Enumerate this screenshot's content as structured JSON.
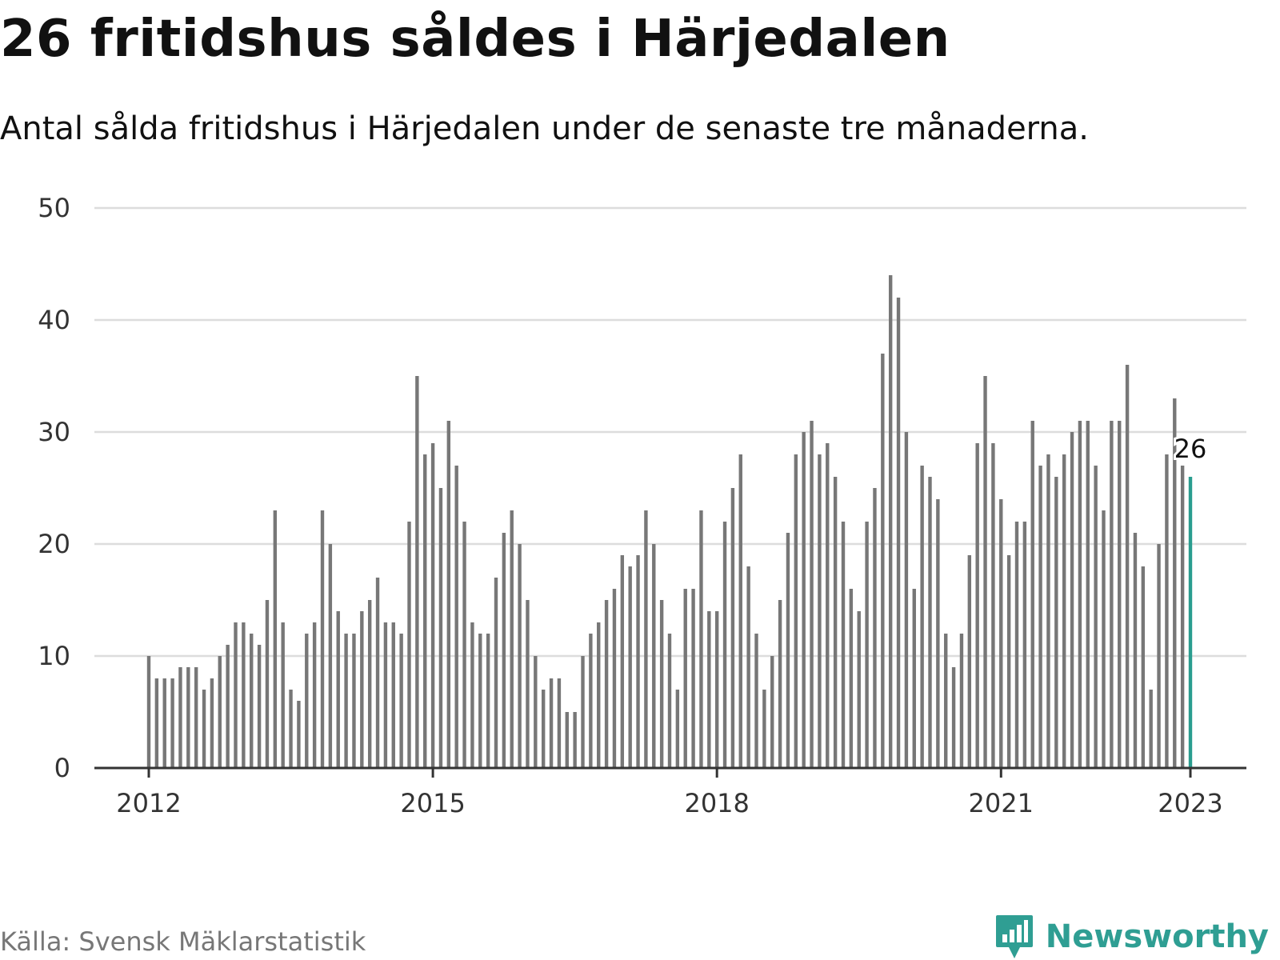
{
  "title": "26 fritidshus såldes i Härjedalen",
  "subtitle": "Antal sålda fritidshus i Härjedalen under de senaste tre månaderna.",
  "source": "Källa: Svensk Mäklarstatistik",
  "brand": {
    "name": "Newsworthy",
    "icon": "newsworthy-logo-icon"
  },
  "colors": {
    "bar": "#777777",
    "highlight": "#2a9d8f",
    "grid": "#dddddd",
    "axis": "#333333",
    "brand": "#2f9e93"
  },
  "chart_data": {
    "type": "bar",
    "title": "26 fritidshus såldes i Härjedalen",
    "subtitle": "Antal sålda fritidshus i Härjedalen under de senaste tre månaderna.",
    "xlabel": "",
    "ylabel": "",
    "ylim": [
      0,
      50
    ],
    "yticks": [
      0,
      10,
      20,
      30,
      40,
      50
    ],
    "xticks": [
      "2012",
      "2015",
      "2018",
      "2021",
      "2023"
    ],
    "grid": true,
    "x_start": "2012-01",
    "x_end": "2023-01",
    "frequency": "monthly",
    "values": [
      10,
      8,
      8,
      8,
      9,
      9,
      9,
      7,
      8,
      10,
      11,
      13,
      13,
      12,
      11,
      15,
      23,
      13,
      7,
      6,
      12,
      13,
      23,
      20,
      14,
      12,
      12,
      14,
      15,
      17,
      13,
      13,
      12,
      22,
      35,
      28,
      29,
      25,
      31,
      27,
      22,
      13,
      12,
      12,
      17,
      21,
      23,
      20,
      15,
      10,
      7,
      8,
      8,
      5,
      5,
      10,
      12,
      13,
      15,
      16,
      19,
      18,
      19,
      23,
      20,
      15,
      12,
      7,
      16,
      16,
      23,
      14,
      14,
      22,
      25,
      28,
      18,
      12,
      7,
      10,
      15,
      21,
      28,
      30,
      31,
      28,
      29,
      26,
      22,
      16,
      14,
      22,
      25,
      37,
      44,
      42,
      30,
      16,
      27,
      26,
      24,
      12,
      9,
      12,
      19,
      29,
      35,
      29,
      24,
      19,
      22,
      22,
      31,
      27,
      28,
      26,
      28,
      30,
      31,
      31,
      27,
      23,
      31,
      31,
      36,
      21,
      18,
      7,
      20,
      28,
      33,
      27,
      26
    ],
    "highlight": {
      "date": "2023-01",
      "value": 26,
      "label": "26"
    }
  }
}
